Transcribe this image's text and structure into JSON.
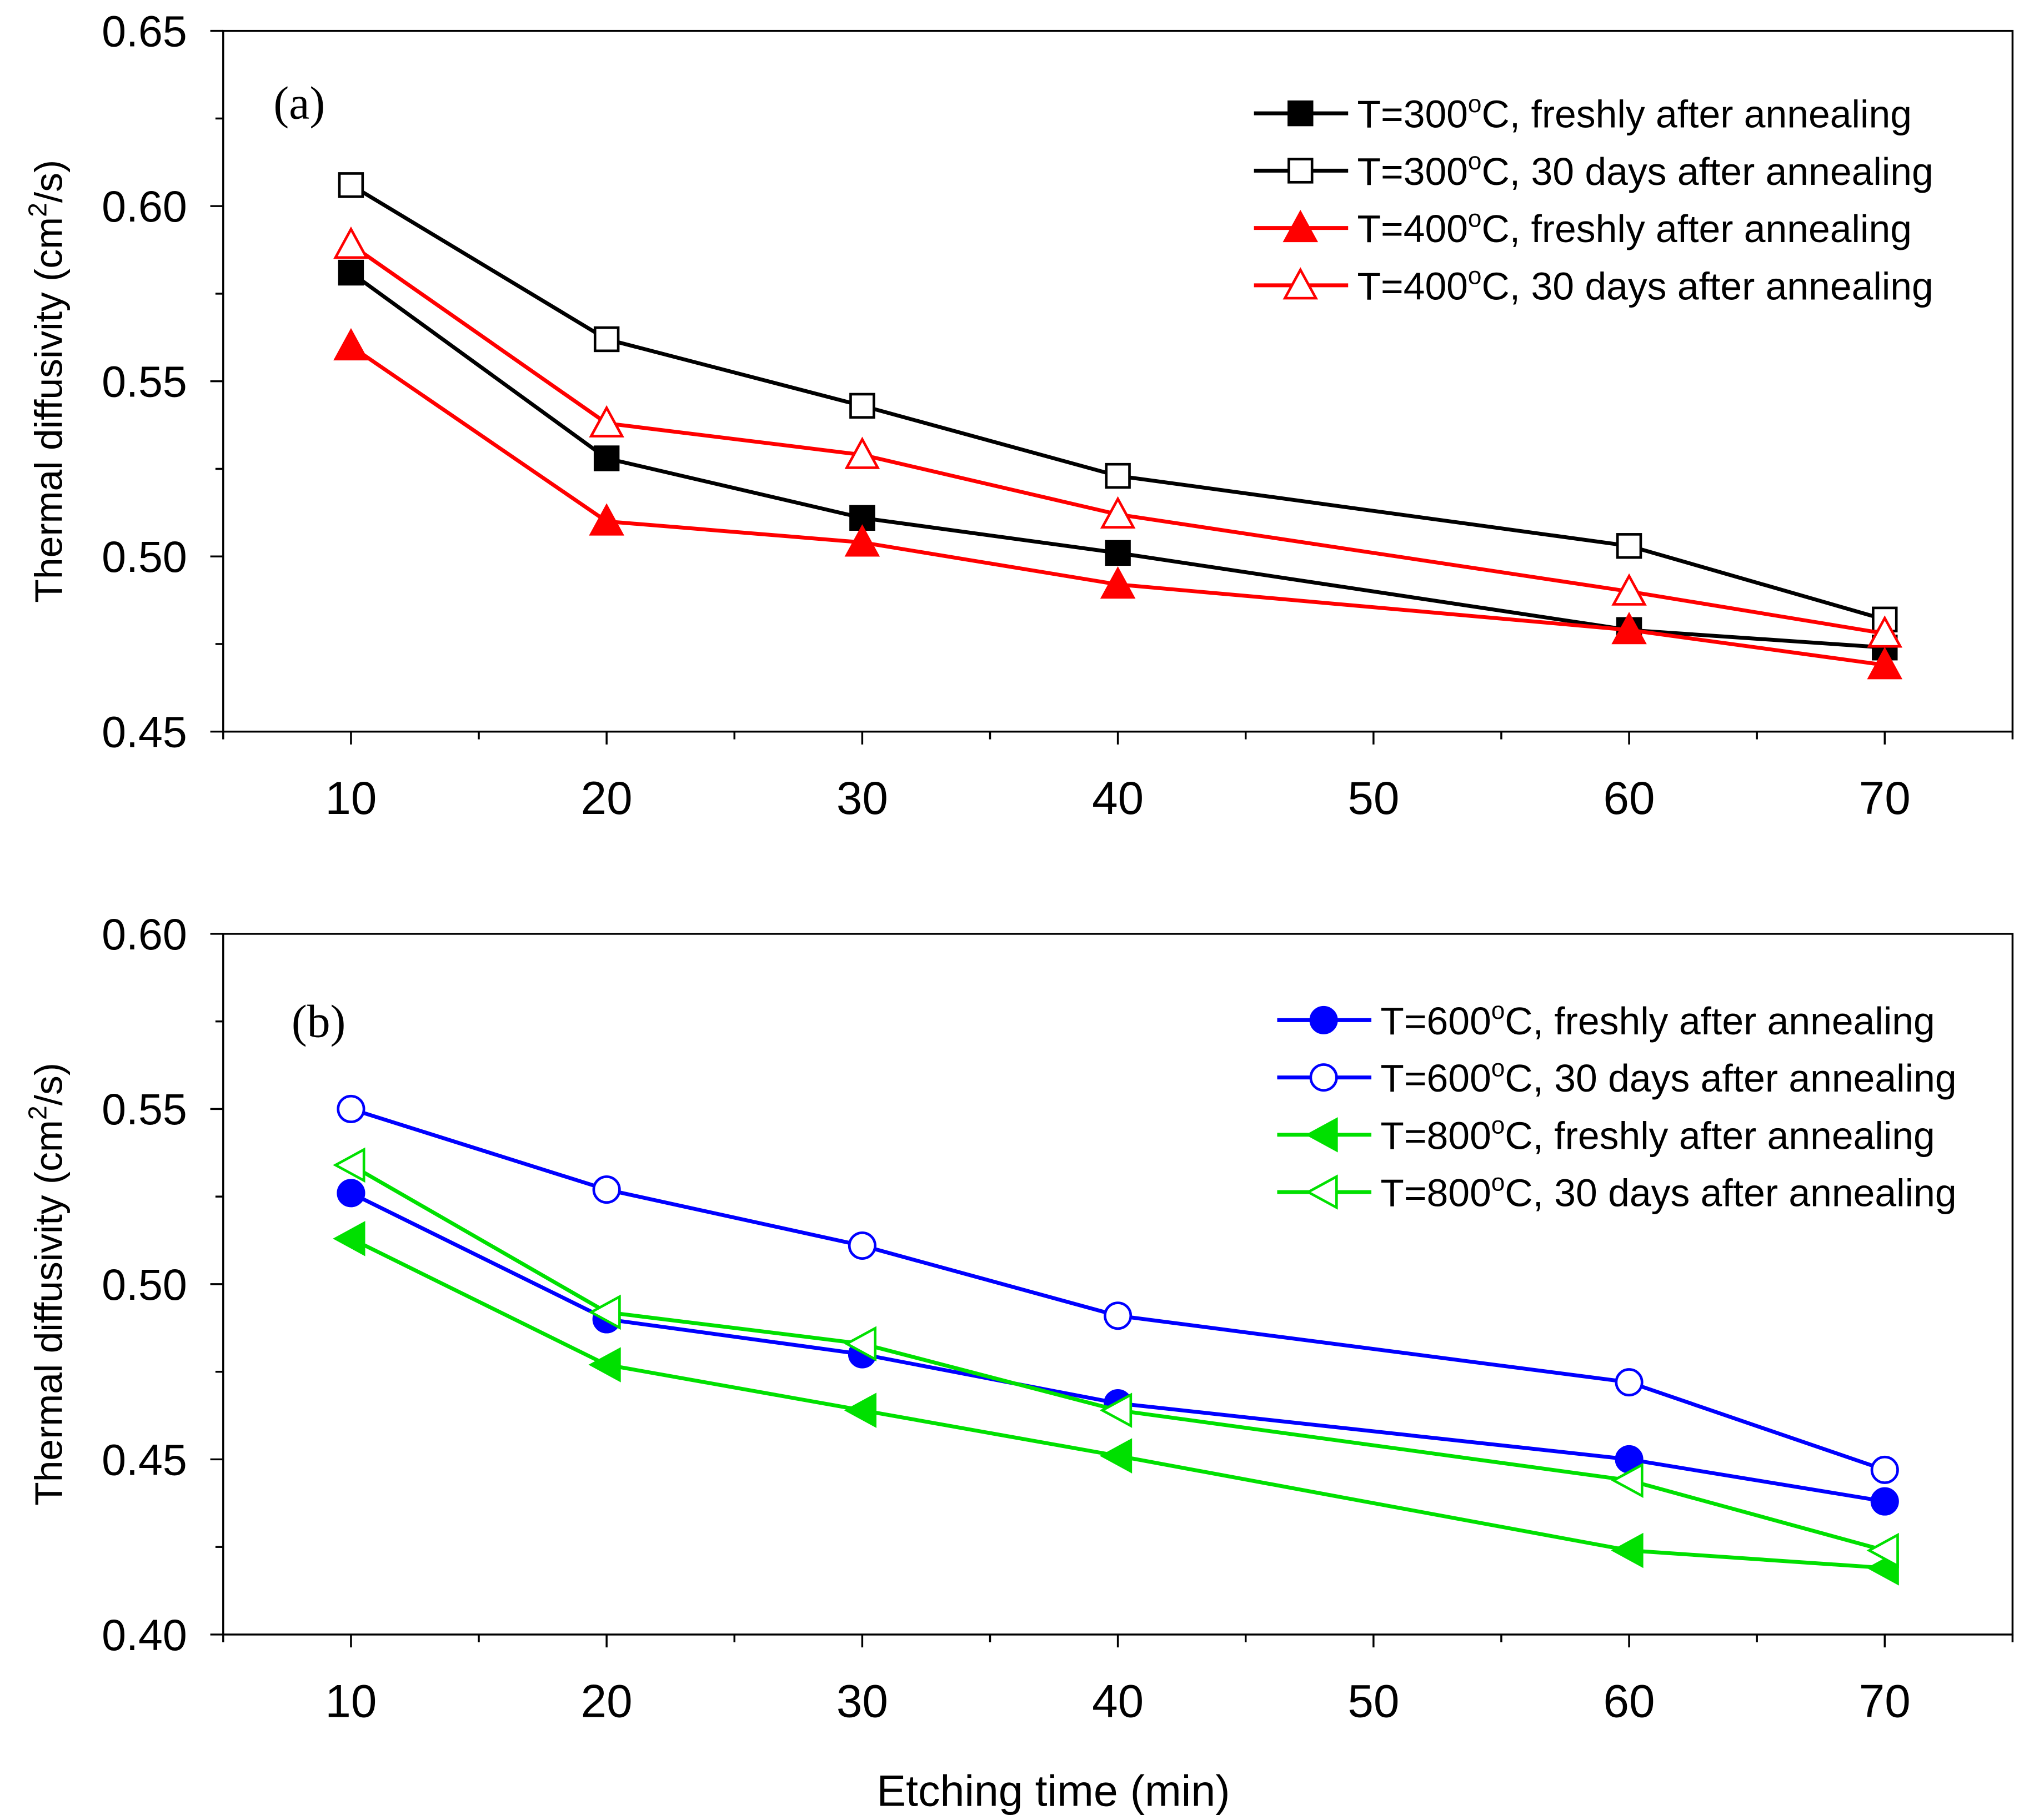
{
  "chart_data": [
    {
      "type": "line",
      "panel_label": "(a)",
      "xlabel": "",
      "ylabel": "Thermal diffusivity (cm2/s)",
      "ylabel_parts": [
        "Thermal diffusivity (cm",
        "2",
        "/s)"
      ],
      "xlim": [
        5,
        75
      ],
      "ylim": [
        0.45,
        0.65
      ],
      "xticks": [
        10,
        20,
        30,
        40,
        50,
        60,
        70
      ],
      "yticks": [
        0.45,
        0.5,
        0.55,
        0.6,
        0.65
      ],
      "ytick_labels": [
        "0.45",
        "0.50",
        "0.55",
        "0.60",
        "0.65"
      ],
      "legend_position": "top-right",
      "x": [
        10,
        20,
        30,
        40,
        60,
        70
      ],
      "series": [
        {
          "name": "T=300°C, freshly after annealing",
          "color": "#000000",
          "marker": "square",
          "filled": true,
          "values": [
            0.581,
            0.528,
            0.511,
            0.501,
            0.479,
            0.474
          ]
        },
        {
          "name": "T=300°C, 30 days after annealing",
          "color": "#000000",
          "marker": "square",
          "filled": false,
          "values": [
            0.606,
            0.562,
            0.543,
            0.523,
            0.503,
            0.482
          ]
        },
        {
          "name": "T=400°C, freshly after annealing",
          "color": "#ff0000",
          "marker": "triangle-up",
          "filled": true,
          "values": [
            0.56,
            0.51,
            0.504,
            0.492,
            0.479,
            0.469
          ]
        },
        {
          "name": "T=400°C, 30 days after annealing",
          "color": "#ff0000",
          "marker": "triangle-up",
          "filled": false,
          "values": [
            0.589,
            0.538,
            0.529,
            0.512,
            0.49,
            0.478
          ]
        }
      ]
    },
    {
      "type": "line",
      "panel_label": "(b)",
      "xlabel": "Etching time (min)",
      "ylabel": "Thermal diffusivity (cm2/s)",
      "ylabel_parts": [
        "Thermal diffusivity (cm",
        "2",
        "/s)"
      ],
      "xlim": [
        5,
        75
      ],
      "ylim": [
        0.4,
        0.6
      ],
      "xticks": [
        10,
        20,
        30,
        40,
        50,
        60,
        70
      ],
      "yticks": [
        0.4,
        0.45,
        0.5,
        0.55,
        0.6
      ],
      "ytick_labels": [
        "0.40",
        "0.45",
        "0.50",
        "0.55",
        "0.60"
      ],
      "legend_position": "top-right",
      "x": [
        10,
        20,
        30,
        40,
        60,
        70
      ],
      "series": [
        {
          "name": "T=600°C, freshly after annealing",
          "color": "#0000ff",
          "marker": "circle",
          "filled": true,
          "values": [
            0.526,
            0.49,
            0.48,
            0.466,
            0.45,
            0.438
          ]
        },
        {
          "name": "T=600°C, 30 days after annealing",
          "color": "#0000ff",
          "marker": "circle",
          "filled": false,
          "values": [
            0.55,
            0.527,
            0.511,
            0.491,
            0.472,
            0.447
          ]
        },
        {
          "name": "T=800°C, freshly after annealing",
          "color": "#00e000",
          "marker": "triangle-left",
          "filled": true,
          "values": [
            0.513,
            0.477,
            0.464,
            0.451,
            0.424,
            0.419
          ]
        },
        {
          "name": "T=800°C, 30 days after annealing",
          "color": "#00e000",
          "marker": "triangle-left",
          "filled": false,
          "values": [
            0.534,
            0.492,
            0.483,
            0.464,
            0.444,
            0.424
          ]
        }
      ]
    }
  ]
}
